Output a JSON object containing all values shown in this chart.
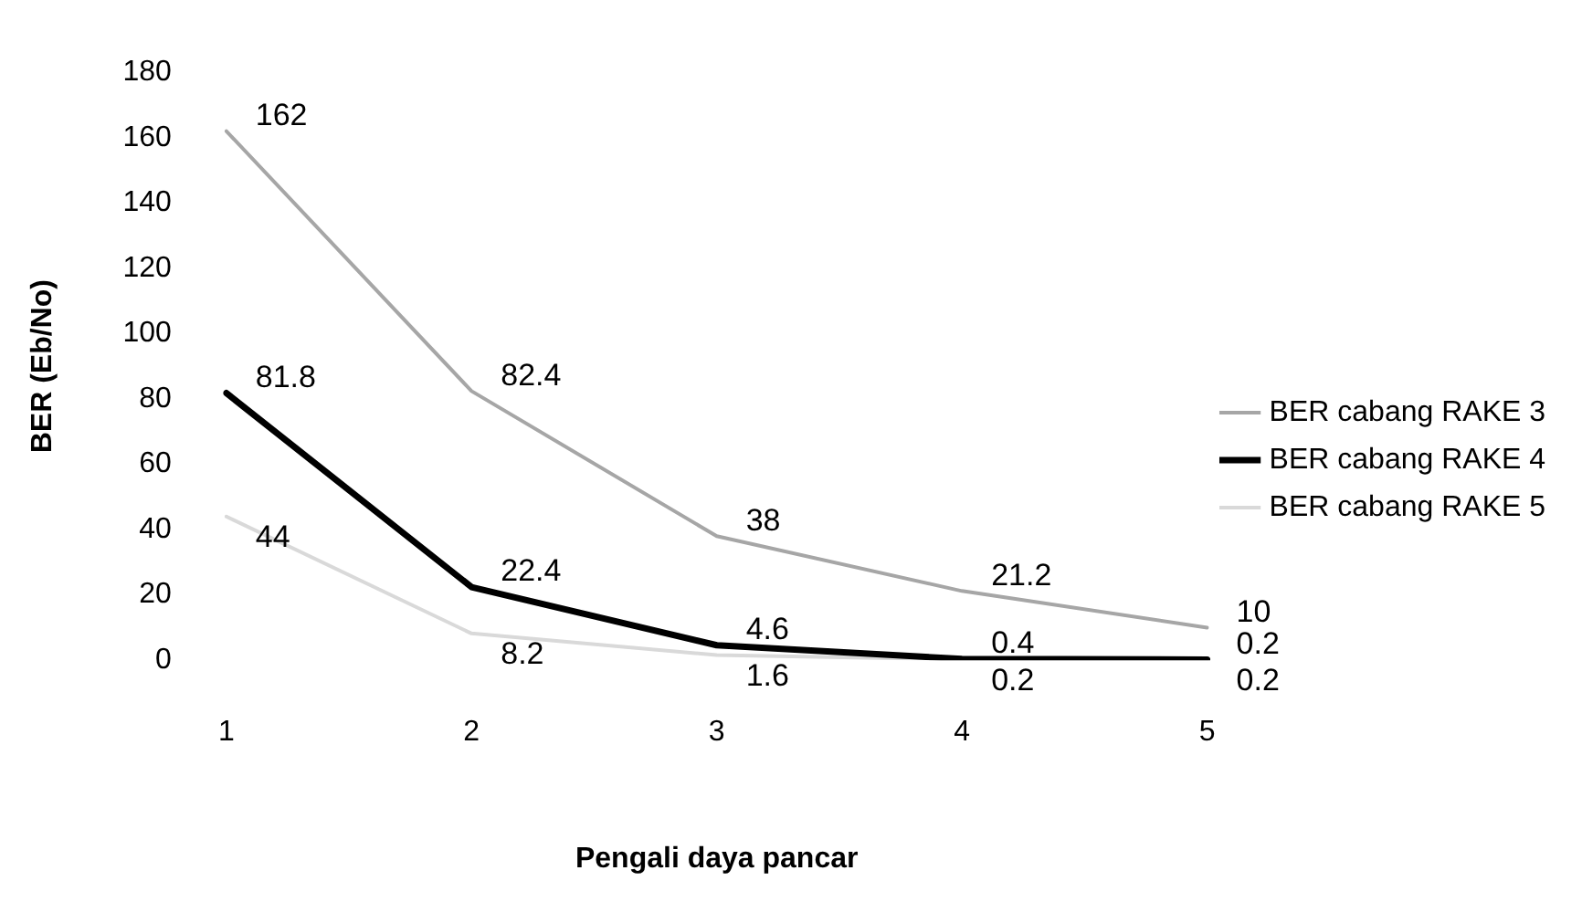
{
  "chart_data": {
    "type": "line",
    "xlabel": "Pengali daya pancar",
    "ylabel": "BER (Eb/No)",
    "categories": [
      "1",
      "2",
      "3",
      "4",
      "5"
    ],
    "series": [
      {
        "name": "BER cabang RAKE 3",
        "color": "#a6a6a6",
        "values": [
          162,
          82.4,
          38,
          21.2,
          10
        ]
      },
      {
        "name": "BER cabang RAKE 4",
        "color": "#000000",
        "values": [
          81.8,
          22.4,
          4.6,
          0.4,
          0.2
        ]
      },
      {
        "name": "BER cabang RAKE 5",
        "color": "#d9d9d9",
        "values": [
          44,
          8.2,
          1.6,
          0.2,
          0.2
        ]
      }
    ],
    "ylim": [
      0,
      180
    ],
    "yticks": [
      0,
      20,
      40,
      60,
      80,
      100,
      120,
      140,
      160,
      180
    ],
    "grid": false,
    "legend": "right",
    "marker": "none",
    "line_style": "solid",
    "data_labels": true
  }
}
